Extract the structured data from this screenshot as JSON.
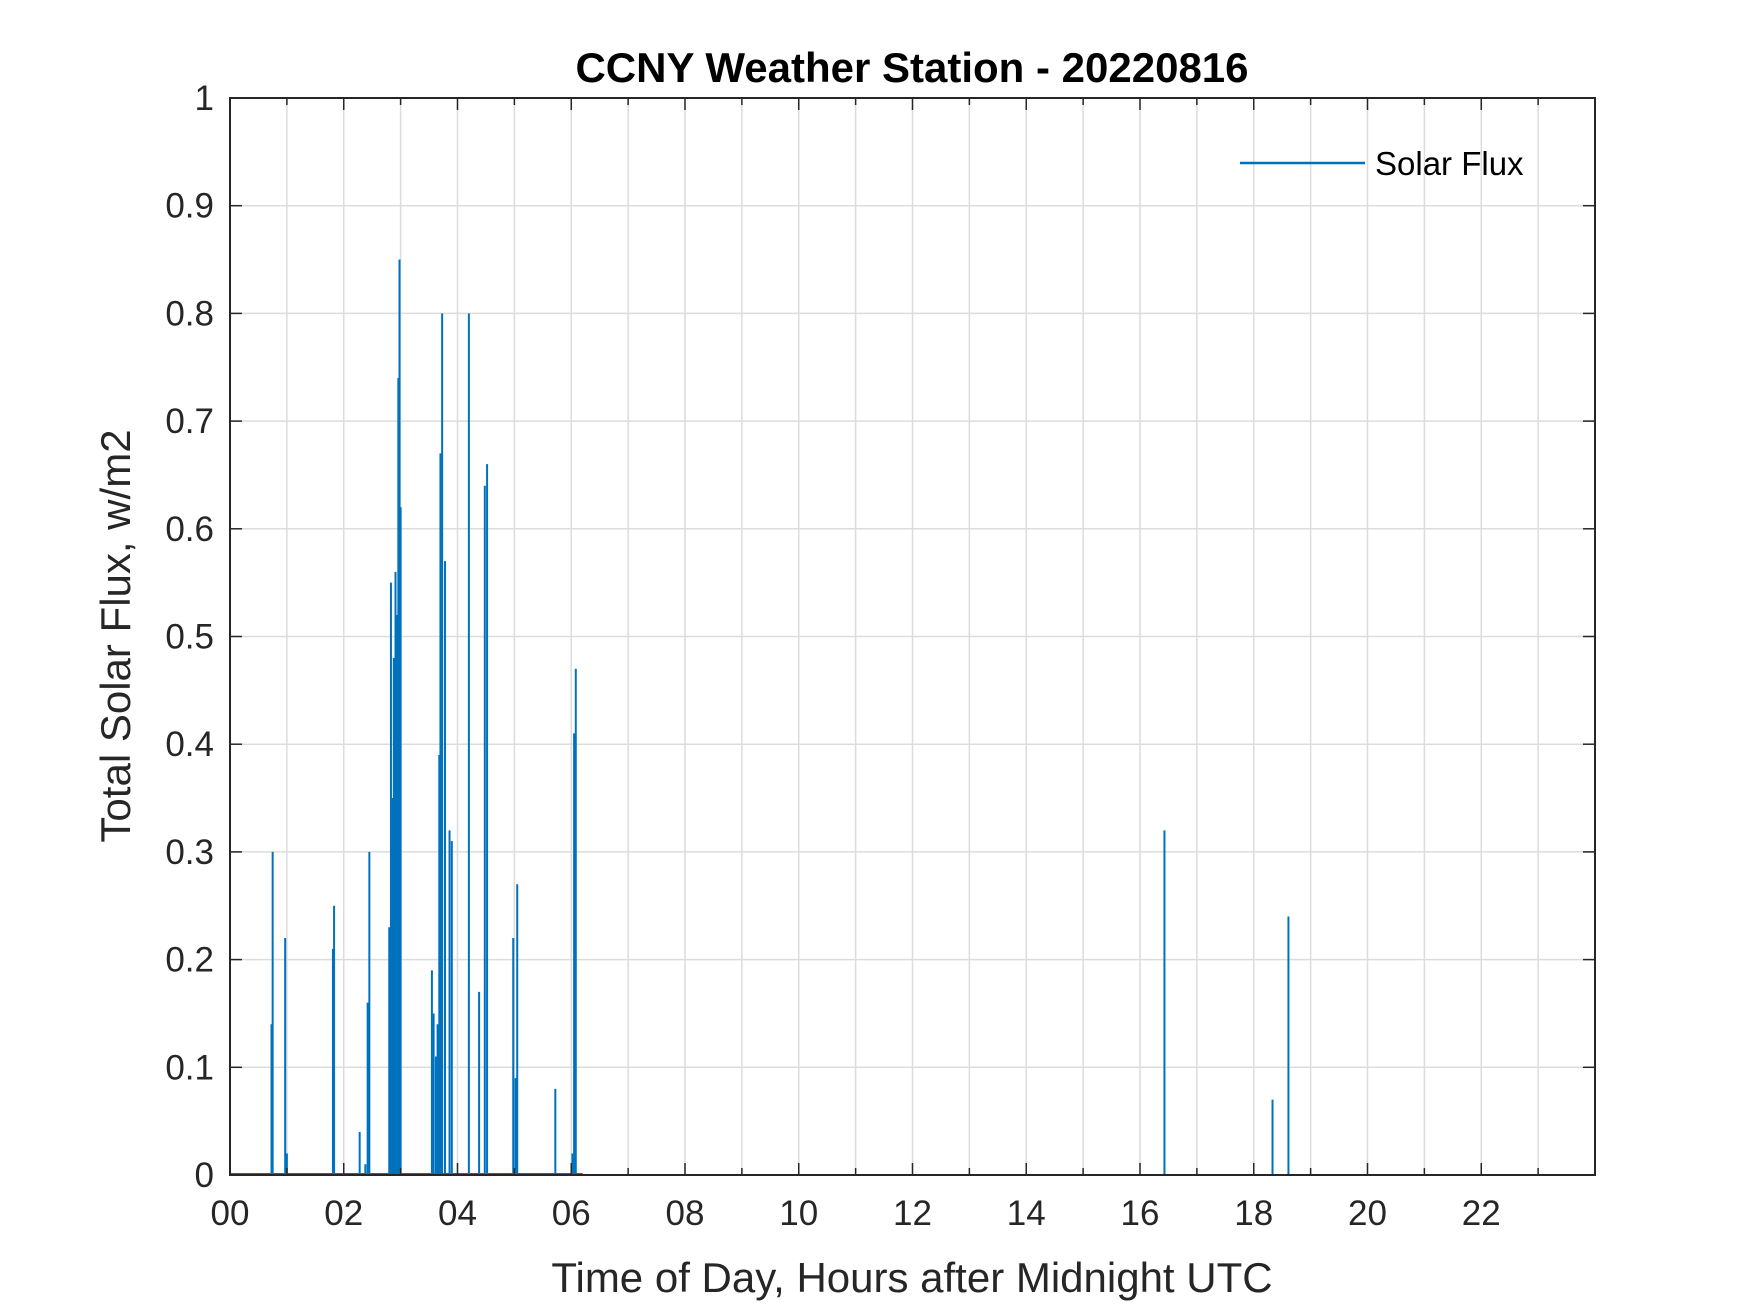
{
  "chart_data": {
    "type": "line",
    "title": "CCNY Weather Station - 20220816",
    "xlabel": "Time of Day, Hours after Midnight UTC",
    "ylabel": "Total Solar Flux, w/m2",
    "xlim": [
      0,
      24
    ],
    "ylim": [
      0,
      1
    ],
    "xticks": [
      0,
      2,
      4,
      6,
      8,
      10,
      12,
      14,
      16,
      18,
      20,
      22
    ],
    "xtick_labels": [
      "00",
      "02",
      "04",
      "06",
      "08",
      "10",
      "12",
      "14",
      "16",
      "18",
      "20",
      "22"
    ],
    "yticks": [
      0,
      0.1,
      0.2,
      0.3,
      0.4,
      0.5,
      0.6,
      0.7,
      0.8,
      0.9,
      1
    ],
    "ytick_labels": [
      "0",
      "0.1",
      "0.2",
      "0.3",
      "0.4",
      "0.5",
      "0.6",
      "0.7",
      "0.8",
      "0.9",
      "1"
    ],
    "grid": true,
    "minor_grid_x": true,
    "legend_position": "top-right",
    "series": [
      {
        "name": "Solar Flux",
        "color": "#0072BD",
        "spikes": [
          [
            0.73,
            0.14
          ],
          [
            0.75,
            0.3
          ],
          [
            0.97,
            0.22
          ],
          [
            1.0,
            0.02
          ],
          [
            1.81,
            0.21
          ],
          [
            1.83,
            0.25
          ],
          [
            2.28,
            0.04
          ],
          [
            2.38,
            0.01
          ],
          [
            2.42,
            0.16
          ],
          [
            2.45,
            0.3
          ],
          [
            2.8,
            0.23
          ],
          [
            2.83,
            0.55
          ],
          [
            2.86,
            0.35
          ],
          [
            2.88,
            0.48
          ],
          [
            2.91,
            0.56
          ],
          [
            2.93,
            0.52
          ],
          [
            2.96,
            0.74
          ],
          [
            2.98,
            0.85
          ],
          [
            3.0,
            0.62
          ],
          [
            3.55,
            0.19
          ],
          [
            3.58,
            0.15
          ],
          [
            3.62,
            0.11
          ],
          [
            3.65,
            0.14
          ],
          [
            3.68,
            0.39
          ],
          [
            3.7,
            0.67
          ],
          [
            3.73,
            0.8
          ],
          [
            3.78,
            0.57
          ],
          [
            3.86,
            0.32
          ],
          [
            3.9,
            0.31
          ],
          [
            4.2,
            0.8
          ],
          [
            4.38,
            0.17
          ],
          [
            4.48,
            0.64
          ],
          [
            4.52,
            0.66
          ],
          [
            4.98,
            0.22
          ],
          [
            5.02,
            0.09
          ],
          [
            5.05,
            0.27
          ],
          [
            5.72,
            0.08
          ],
          [
            6.02,
            0.02
          ],
          [
            6.05,
            0.41
          ],
          [
            6.08,
            0.47
          ],
          [
            16.43,
            0.32
          ],
          [
            18.33,
            0.07
          ],
          [
            18.61,
            0.24
          ]
        ]
      }
    ]
  }
}
